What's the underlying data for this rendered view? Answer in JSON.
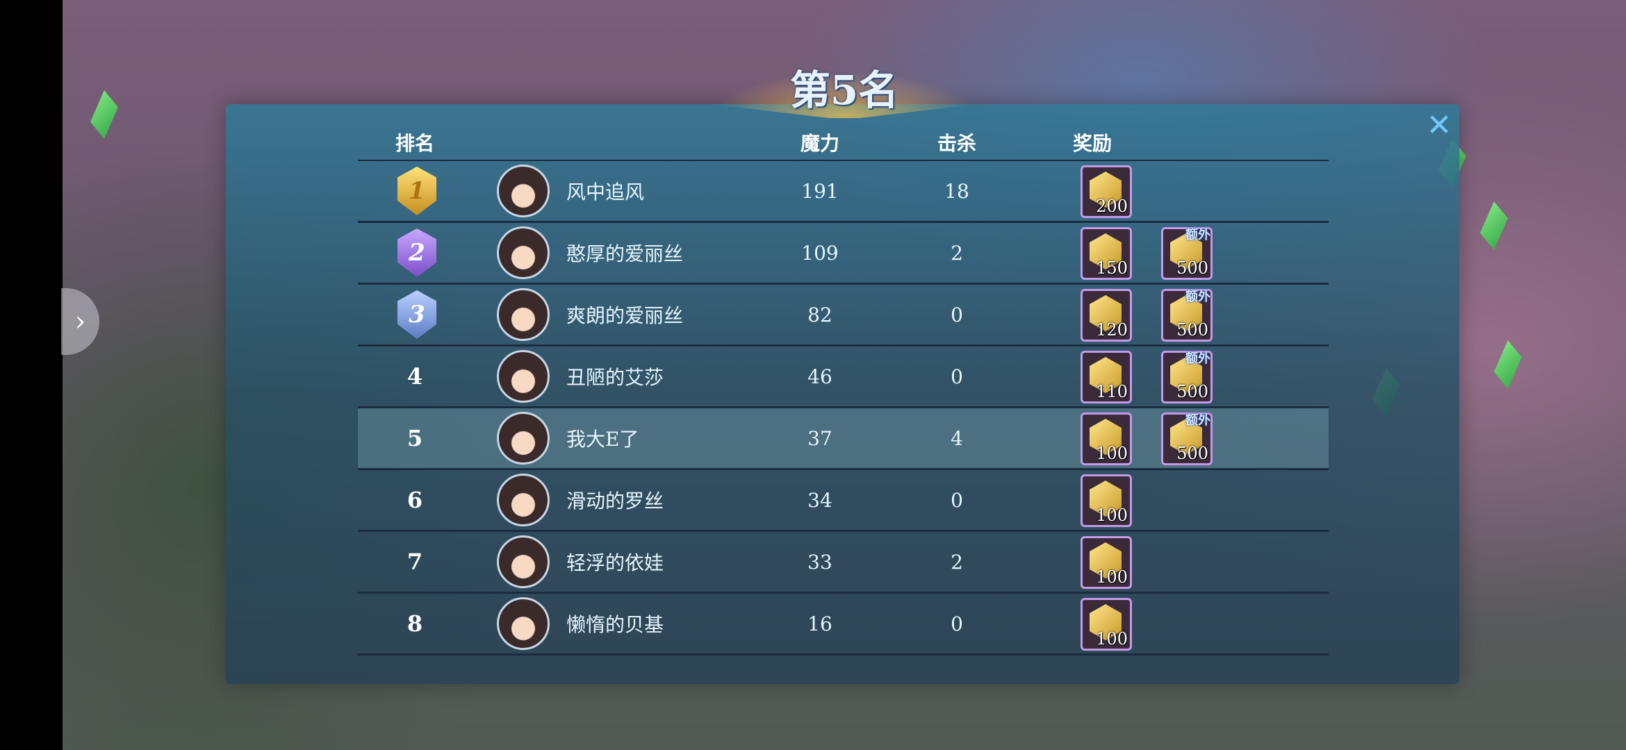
{
  "title": "第5名",
  "headers": {
    "rank": "排名",
    "power": "魔力",
    "kills": "击杀",
    "reward": "奖励"
  },
  "rows": [
    {
      "rank": "1",
      "name": "风中追风",
      "power": "191",
      "kills": "18",
      "reward": "200",
      "extra": null
    },
    {
      "rank": "2",
      "name": "憨厚的爱丽丝",
      "power": "109",
      "kills": "2",
      "reward": "150",
      "extra": "500"
    },
    {
      "rank": "3",
      "name": "爽朗的爱丽丝",
      "power": "82",
      "kills": "0",
      "reward": "120",
      "extra": "500"
    },
    {
      "rank": "4",
      "name": "丑陋的艾莎",
      "power": "46",
      "kills": "0",
      "reward": "110",
      "extra": "500"
    },
    {
      "rank": "5",
      "name": "我大E了",
      "power": "37",
      "kills": "4",
      "reward": "100",
      "extra": "500"
    },
    {
      "rank": "6",
      "name": "滑动的罗丝",
      "power": "34",
      "kills": "0",
      "reward": "100",
      "extra": null
    },
    {
      "rank": "7",
      "name": "轻浮的依娃",
      "power": "33",
      "kills": "2",
      "reward": "100",
      "extra": null
    },
    {
      "rank": "8",
      "name": "懒惰的贝基",
      "power": "16",
      "kills": "0",
      "reward": "100",
      "extra": null
    }
  ],
  "extra_label": "额外",
  "highlight_rank": "5",
  "icons": {
    "close": "close-icon",
    "expand": "chevron-right-icon",
    "reward": "gold-coin-icon"
  }
}
